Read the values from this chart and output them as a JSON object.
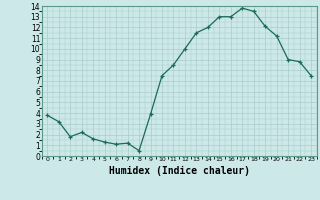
{
  "hours": [
    0,
    1,
    2,
    3,
    4,
    5,
    6,
    7,
    8,
    9,
    10,
    11,
    12,
    13,
    14,
    15,
    16,
    17,
    18,
    19,
    20,
    21,
    22,
    23
  ],
  "values": [
    3.8,
    3.2,
    1.8,
    2.2,
    1.6,
    1.3,
    1.1,
    1.2,
    0.5,
    3.9,
    7.5,
    8.5,
    10.0,
    11.5,
    12.0,
    13.0,
    13.0,
    13.8,
    13.5,
    12.1,
    11.2,
    9.0,
    8.8,
    7.5
  ],
  "xlabel": "Humidex (Indice chaleur)",
  "xlim": [
    -0.5,
    23.5
  ],
  "ylim": [
    0,
    14
  ],
  "yticks": [
    0,
    1,
    2,
    3,
    4,
    5,
    6,
    7,
    8,
    9,
    10,
    11,
    12,
    13,
    14
  ],
  "xticks": [
    0,
    1,
    2,
    3,
    4,
    5,
    6,
    7,
    8,
    9,
    10,
    11,
    12,
    13,
    14,
    15,
    16,
    17,
    18,
    19,
    20,
    21,
    22,
    23
  ],
  "line_color": "#1a6b5a",
  "marker": "+",
  "bg_color": "#cce8e8",
  "grid_color": "#aacccc",
  "spine_color": "#5a9a8a"
}
